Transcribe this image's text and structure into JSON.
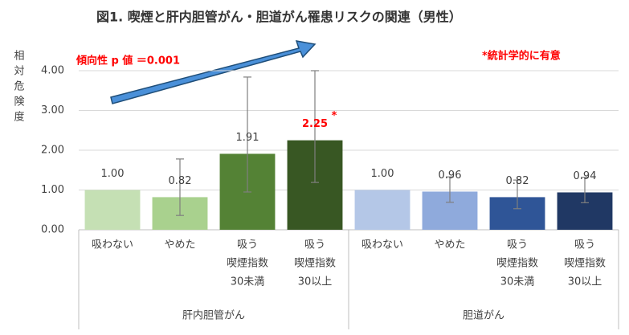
{
  "chart_data": {
    "type": "bar",
    "title": "図1. 喫煙と肝内胆管がん・胆道がん罹患リスクの関連（男性）",
    "y_label": "相対危険度",
    "annotations": [
      "傾向性 p 値 ＝0.001",
      "*統計学的に有意"
    ],
    "significance_mark": "*",
    "significant": [
      false,
      false,
      false,
      true,
      false,
      false,
      false,
      false
    ],
    "categories": [
      [
        "吸わない"
      ],
      [
        "やめた"
      ],
      [
        "吸う",
        "喫煙指数",
        "30未満"
      ],
      [
        "吸う",
        "喫煙指数",
        "30以上"
      ],
      [
        "吸わない"
      ],
      [
        "やめた"
      ],
      [
        "吸う",
        "喫煙指数",
        "30未満"
      ],
      [
        "吸う",
        "喫煙指数",
        "30以上"
      ]
    ],
    "groups": [
      "肝内胆管がん",
      "胆道がん"
    ],
    "values": [
      1.0,
      0.82,
      1.91,
      2.25,
      1.0,
      0.96,
      0.82,
      0.94
    ],
    "value_labels": [
      "1.00",
      "0.82",
      "1.91",
      "2.25",
      "1.00",
      "0.96",
      "0.82",
      "0.94"
    ],
    "ci_lower": [
      null,
      0.36,
      0.95,
      1.19,
      null,
      0.69,
      0.53,
      0.68
    ],
    "ci_upper": [
      null,
      1.78,
      3.84,
      4.0,
      null,
      1.33,
      1.25,
      1.32
    ],
    "colors": [
      "#c5e0b4",
      "#a9d18e",
      "#548235",
      "#385723",
      "#b4c7e7",
      "#8faadc",
      "#2f5597",
      "#203864"
    ],
    "ylim": [
      0,
      4
    ],
    "yticks": [
      {
        "value": 0,
        "label": "0.00"
      },
      {
        "value": 1,
        "label": "1.00"
      },
      {
        "value": 2,
        "label": "2.00"
      },
      {
        "value": 3,
        "label": "3.00"
      },
      {
        "value": 4,
        "label": "4.00"
      }
    ],
    "grid": true
  }
}
